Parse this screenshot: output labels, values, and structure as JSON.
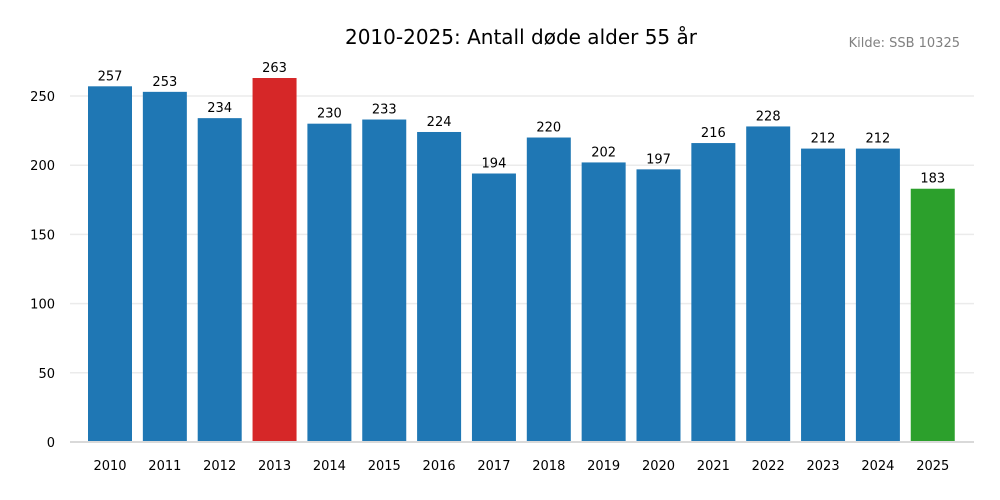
{
  "chart_data": {
    "type": "bar",
    "title": "2010-2025: Antall døde alder 55 år",
    "source": "Kilde: SSB 10325",
    "xlabel": "",
    "ylabel": "",
    "categories": [
      "2010",
      "2011",
      "2012",
      "2013",
      "2014",
      "2015",
      "2016",
      "2017",
      "2018",
      "2019",
      "2020",
      "2021",
      "2022",
      "2023",
      "2024",
      "2025"
    ],
    "values": [
      257,
      253,
      234,
      263,
      230,
      233,
      224,
      194,
      220,
      202,
      197,
      216,
      228,
      212,
      212,
      183
    ],
    "ylim": [
      0,
      275
    ],
    "yticks": [
      0,
      50,
      100,
      150,
      200,
      250
    ],
    "grid": true,
    "colors": {
      "default": "#1f77b4",
      "max": "#d62728",
      "latest": "#2ca02c"
    },
    "highlight": {
      "2013": "max",
      "2025": "latest"
    }
  }
}
